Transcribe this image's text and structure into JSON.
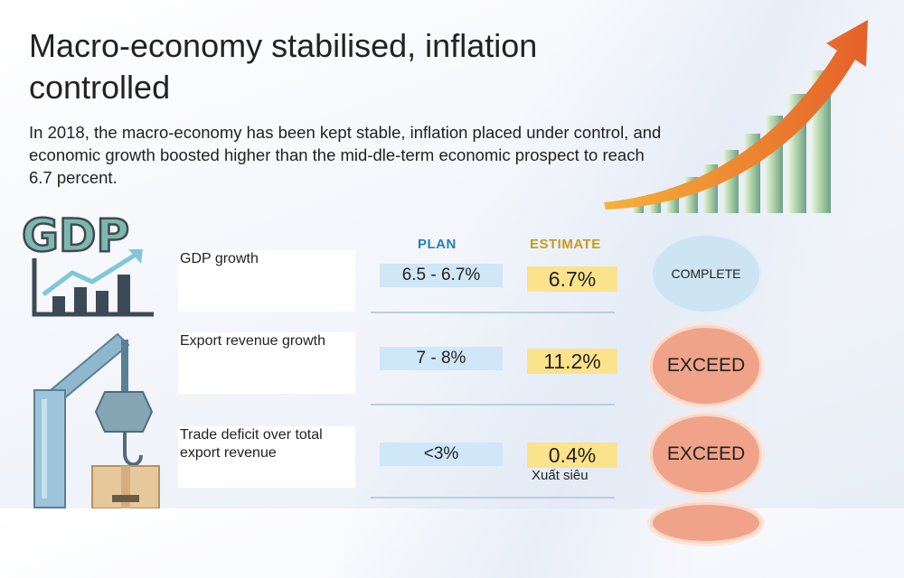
{
  "title": "Macro-economy stabilised, inflation controlled",
  "intro": "In 2018, the macro-economy has been kept stable, inflation placed under control, and economic growth boosted higher than the mid-dle-term economic prospect to reach 6.7 percent.",
  "columns": {
    "plan": "PLAN",
    "estimate": "ESTIMATE"
  },
  "rows": [
    {
      "label": "GDP growth",
      "plan": "6.5 - 6.7%",
      "estimate": "6.7%",
      "status": "COMPLETE"
    },
    {
      "label": "Export revenue growth",
      "plan": "7 - 8%",
      "estimate": "11.2%",
      "status": "EXCEED"
    },
    {
      "label": "Trade deficit over total export revenue",
      "plan": "<3%",
      "estimate": "0.4%",
      "status": "EXCEED",
      "note": "Xuất siêu"
    }
  ],
  "logo_text": "GDP",
  "colors": {
    "plan": "#2a7bbf",
    "estimate": "#c99a1a",
    "complete": "#cde4f3",
    "exceed": "#f0a388",
    "arrow": "#f08a2c"
  },
  "icons": [
    "gdp-chart-icon",
    "rising-arrow-chart",
    "crane-hook-icon",
    "cardboard-box-icon"
  ]
}
